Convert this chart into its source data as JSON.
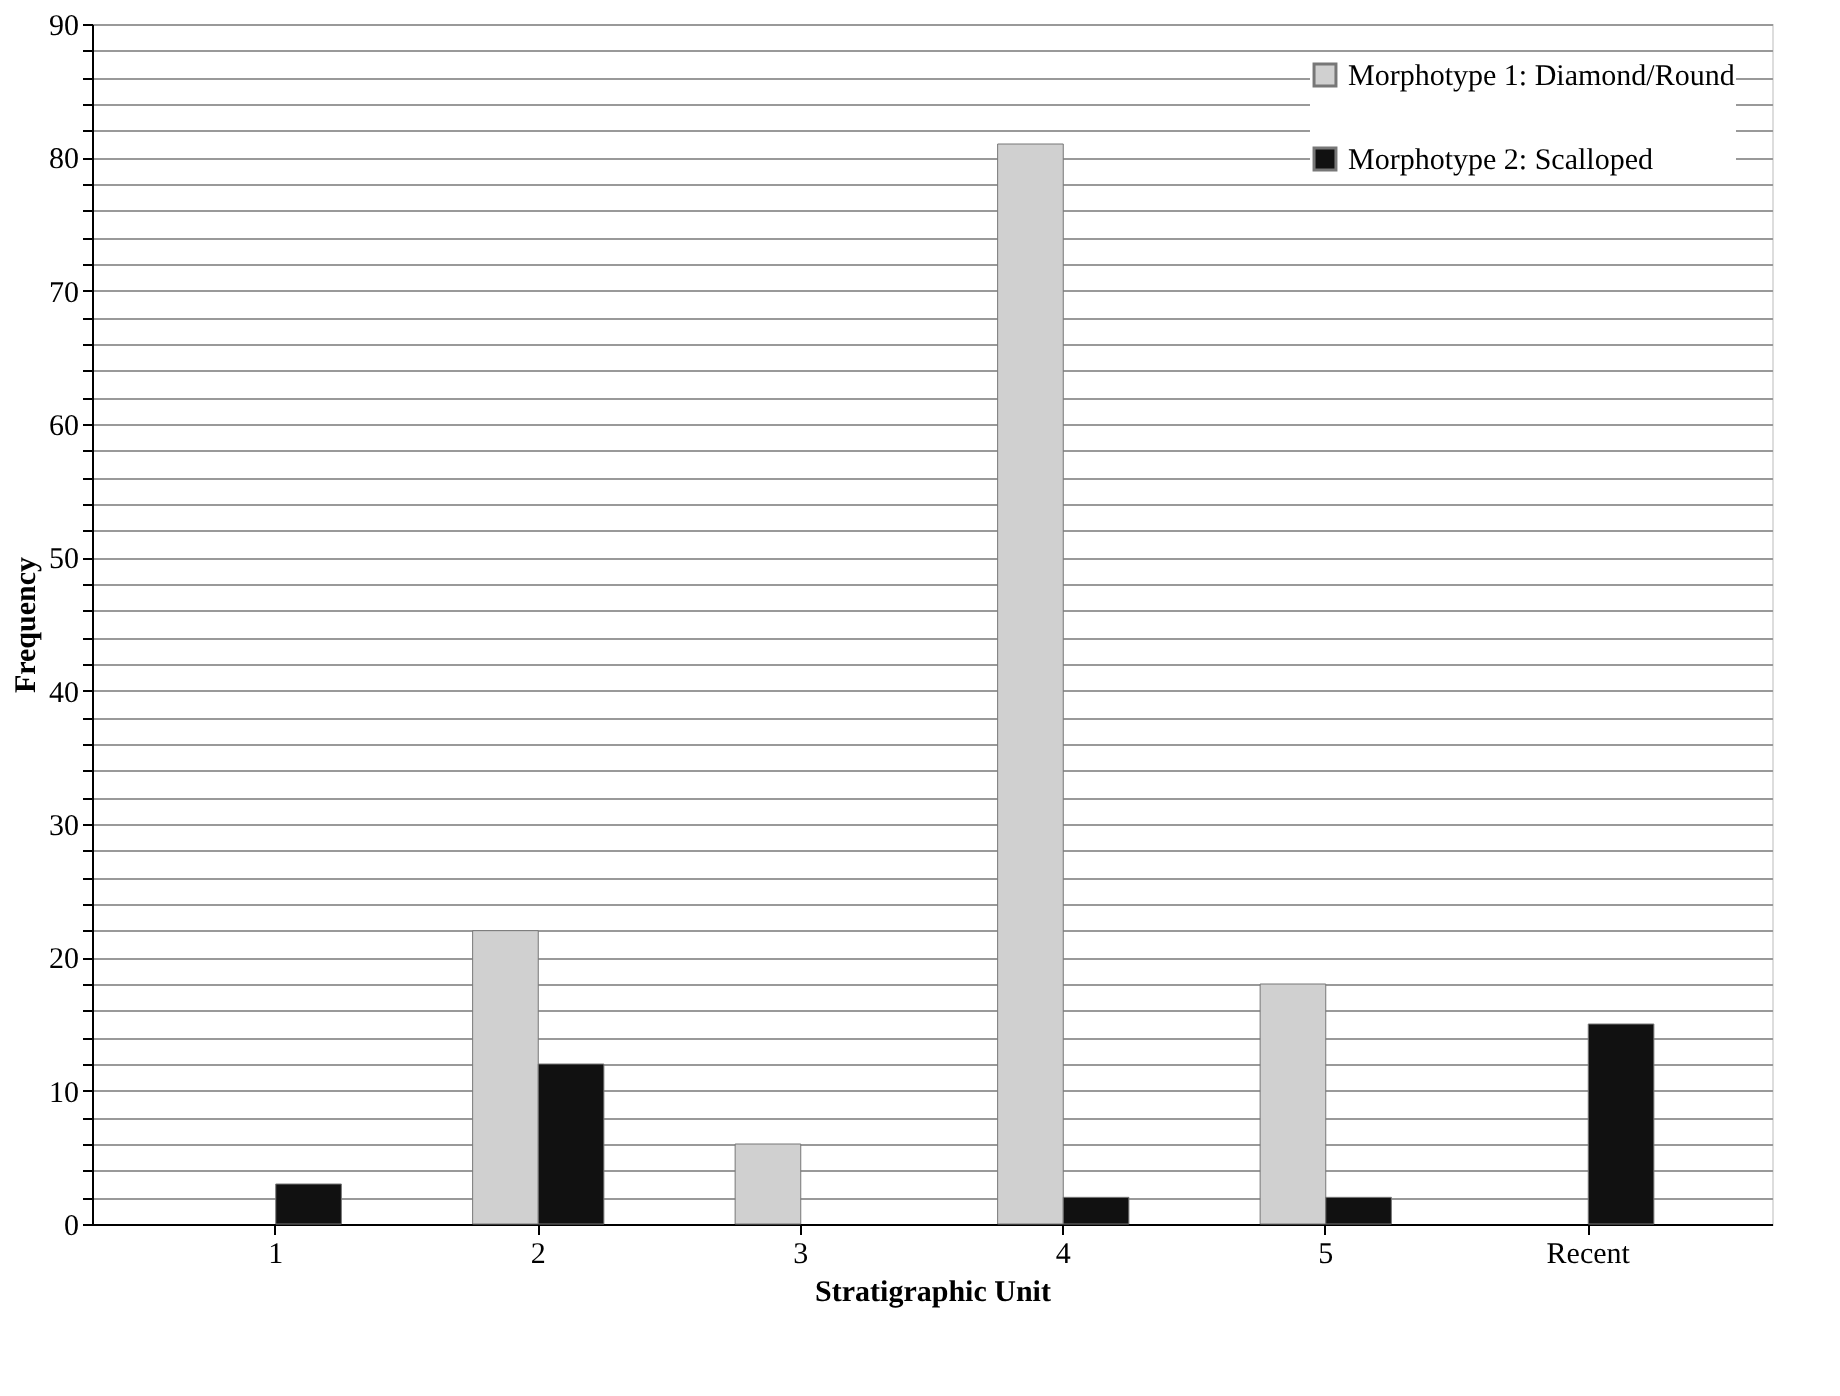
{
  "chart_data": {
    "type": "bar",
    "xlabel": "Stratigraphic Unit",
    "ylabel": "Frequency",
    "categories": [
      "1",
      "2",
      "3",
      "4",
      "5",
      "Recent"
    ],
    "series": [
      {
        "name": "Morphotype 1: Diamond/Round",
        "color": "#d0d0d0",
        "values": [
          null,
          22,
          6,
          81,
          18,
          null
        ]
      },
      {
        "name": "Morphotype 2: Scalloped",
        "color": "#111111",
        "values": [
          3,
          12,
          null,
          2,
          2,
          15
        ]
      }
    ],
    "ylim": [
      0,
      90
    ],
    "yticks": [
      0,
      {
        "value": 2,
        "label": null
      },
      {
        "value": 4,
        "label": null
      },
      {
        "value": 6,
        "label": null
      },
      {
        "value": 8,
        "label": null
      },
      10,
      {
        "value": 12,
        "label": null
      },
      {
        "value": 14,
        "label": null
      },
      {
        "value": 16,
        "label": null
      },
      {
        "value": 18,
        "label": null
      },
      20,
      {
        "value": 22,
        "label": null
      },
      {
        "value": 24,
        "label": null
      },
      {
        "value": 26,
        "label": null
      },
      {
        "value": 28,
        "label": null
      },
      30,
      {
        "value": 32,
        "label": null
      },
      {
        "value": 34,
        "label": null
      },
      {
        "value": 36,
        "label": null
      },
      {
        "value": 38,
        "label": null
      },
      40,
      {
        "value": 42,
        "label": null
      },
      {
        "value": 44,
        "label": null
      },
      {
        "value": 46,
        "label": null
      },
      {
        "value": 48,
        "label": null
      },
      50,
      {
        "value": 52,
        "label": null
      },
      {
        "value": 54,
        "label": null
      },
      {
        "value": 56,
        "label": null
      },
      {
        "value": 58,
        "label": null
      },
      60,
      {
        "value": 62,
        "label": null
      },
      {
        "value": 64,
        "label": null
      },
      {
        "value": 66,
        "label": null
      },
      {
        "value": 68,
        "label": null
      },
      70,
      {
        "value": 72,
        "label": null
      },
      {
        "value": 74,
        "label": null
      },
      {
        "value": 76,
        "label": null
      },
      {
        "value": 78,
        "label": null
      },
      80,
      {
        "value": 82,
        "label": null
      },
      {
        "value": 84,
        "label": null
      },
      {
        "value": 86,
        "label": null
      },
      {
        "value": 88,
        "label": null
      },
      90
    ],
    "grid": "y",
    "legend": "top right"
  }
}
